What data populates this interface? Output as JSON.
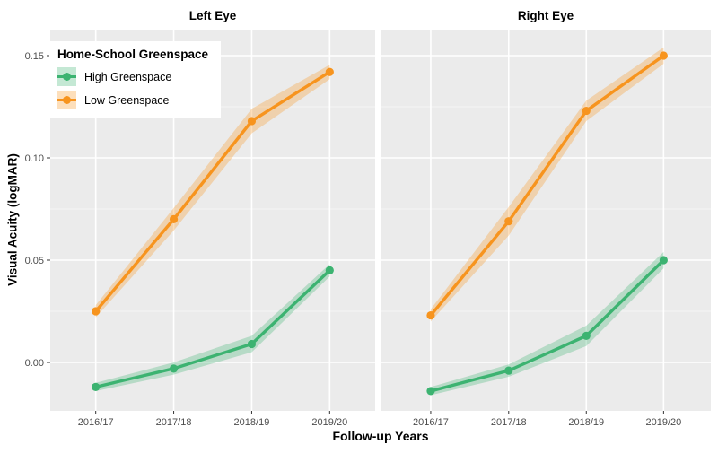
{
  "figure": {
    "background": "#FFFFFF",
    "panel_bg": "#EBEBEB",
    "grid_major_color": "#FFFFFF",
    "grid_minor_color": "#FFFFFF",
    "tick_mark_color": "#333333",
    "tick_label_color": "#4D4D4D"
  },
  "titles": {
    "x_axis": "Follow-up Years",
    "y_axis": "Visual Acuity (logMAR)"
  },
  "legend": {
    "title": "Home-School Greenspace",
    "items": [
      {
        "label": "High Greenspace",
        "color": "#3CB371",
        "fill": "rgba(60,179,113,0.30)"
      },
      {
        "label": "Low Greenspace",
        "color": "#F7941E",
        "fill": "rgba(247,148,30,0.30)"
      }
    ]
  },
  "chart_data": {
    "type": "line",
    "title": "",
    "xlabel": "Follow-up Years",
    "ylabel": "Visual Acuity (logMAR)",
    "x_categories": [
      "2016/17",
      "2017/18",
      "2018/19",
      "2019/20"
    ],
    "y_ticks": [
      0.0,
      0.05,
      0.1,
      0.15
    ],
    "y_tick_labels": [
      "0.00",
      "0.05",
      "0.10",
      "0.15"
    ],
    "ylim": [
      -0.024,
      0.163
    ],
    "grid": true,
    "legend_position": "top-left-inside",
    "legend_title": "Home-School Greenspace",
    "facets": [
      {
        "label": "Left Eye",
        "series": [
          {
            "name": "High Greenspace",
            "color": "#3CB371",
            "fill": "rgba(60,179,113,0.30)",
            "values": [
              -0.012,
              -0.003,
              0.009,
              0.045
            ],
            "ribbon_half": [
              0.002,
              0.003,
              0.004,
              0.003
            ]
          },
          {
            "name": "Low Greenspace",
            "color": "#F7941E",
            "fill": "rgba(247,148,30,0.30)",
            "values": [
              0.025,
              0.07,
              0.118,
              0.142
            ],
            "ribbon_half": [
              0.003,
              0.0055,
              0.006,
              0.0035
            ]
          }
        ]
      },
      {
        "label": "Right Eye",
        "series": [
          {
            "name": "High Greenspace",
            "color": "#3CB371",
            "fill": "rgba(60,179,113,0.30)",
            "values": [
              -0.014,
              -0.004,
              0.013,
              0.05
            ],
            "ribbon_half": [
              0.002,
              0.003,
              0.005,
              0.004
            ]
          },
          {
            "name": "Low Greenspace",
            "color": "#F7941E",
            "fill": "rgba(247,148,30,0.30)",
            "values": [
              0.023,
              0.069,
              0.123,
              0.15
            ],
            "ribbon_half": [
              0.003,
              0.007,
              0.005,
              0.004
            ]
          }
        ]
      }
    ]
  }
}
